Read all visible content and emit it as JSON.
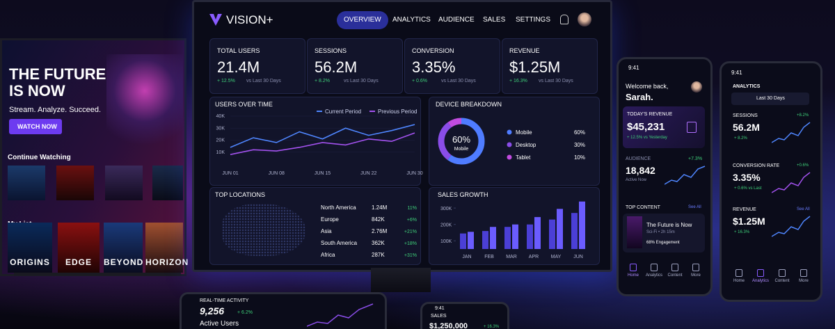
{
  "tv": {
    "headline": [
      "THE FUTURE",
      "IS NOW"
    ],
    "tagline": "Stream. Analyze. Succeed.",
    "cta": "WATCH NOW",
    "continue_watching": "Continue Watching",
    "my_list": "My List",
    "my_list_titles": [
      "ORIGINS",
      "EDGE",
      "BEYOND",
      "HORIZON"
    ]
  },
  "monitor": {
    "logo": "VISION+",
    "nav": [
      "OVERVIEW",
      "ANALYTICS",
      "AUDIENCE",
      "SALES",
      "SETTINGS"
    ],
    "kpis": [
      {
        "label": "TOTAL USERS",
        "value": "21.4M",
        "change": "+ 12.5%",
        "note": "vs Last 30 Days"
      },
      {
        "label": "SESSIONS",
        "value": "56.2M",
        "change": "+ 8.2%",
        "note": "vs Last 30 Days"
      },
      {
        "label": "CONVERSION",
        "value": "3.35%",
        "change": "+ 0.6%",
        "note": "vs Last 30 Days"
      },
      {
        "label": "REVENUE",
        "value": "$1.25M",
        "change": "+ 16.3%",
        "note": "vs Last 30 Days"
      }
    ],
    "users_over_time": {
      "type": "line",
      "title": "USERS OVER TIME",
      "categories": [
        "JUN 01",
        null,
        "JUN 08",
        null,
        "JUN 15",
        null,
        "JUN 22",
        null,
        "JUN 30"
      ],
      "series": [
        {
          "name": "Current Period",
          "color": "#4f86ff",
          "values": [
            14000,
            22000,
            18000,
            27000,
            21000,
            30000,
            24000,
            28000,
            33000
          ]
        },
        {
          "name": "Previous Period",
          "color": "#a452f0",
          "values": [
            8000,
            12000,
            11000,
            14000,
            18000,
            16000,
            21000,
            19000,
            26000
          ]
        }
      ],
      "ylim": [
        0,
        40000
      ],
      "yticks": [
        {
          "value": 10000,
          "label": "10K"
        },
        {
          "value": 20000,
          "label": "20K"
        },
        {
          "value": 30000,
          "label": "30K"
        },
        {
          "value": 40000,
          "label": "40K"
        }
      ]
    },
    "device_breakdown": {
      "type": "pie",
      "title": "DEVICE BREAKDOWN",
      "center_label": "Mobile",
      "categories": [
        "Mobile",
        "Desktop",
        "Tablet"
      ],
      "values": [
        60,
        30,
        10
      ],
      "value_labels": [
        "60%",
        "30%",
        "10%"
      ],
      "colors": [
        "#4f7cff",
        "#8a4de8",
        "#c24ce0"
      ]
    },
    "top_locations": {
      "title": "TOP LOCATIONS",
      "rows": [
        [
          "North America",
          "1.24M",
          "11%"
        ],
        [
          "Europe",
          "842K",
          "+6%"
        ],
        [
          "Asia",
          "2.76M",
          "+21%"
        ],
        [
          "South America",
          "362K",
          "+18%"
        ],
        [
          "Africa",
          "287K",
          "+31%"
        ]
      ]
    },
    "sales_growth": {
      "type": "bar",
      "title": "SALES GROWTH",
      "categories": [
        "JAN",
        "FEB",
        "MAR",
        "APR",
        "MAY",
        "JUN"
      ],
      "series": [
        {
          "color": "#4b3fd6",
          "values": [
            145000,
            160000,
            185000,
            200000,
            230000,
            270000
          ]
        },
        {
          "color": "#6b5cff",
          "values": [
            155000,
            185000,
            200000,
            245000,
            295000,
            340000
          ]
        }
      ],
      "ylim": [
        50000,
        360000
      ],
      "yticks": [
        {
          "value": 100000,
          "label": "100K"
        },
        {
          "value": 200000,
          "label": "200K"
        },
        {
          "value": 300000,
          "label": "300K"
        }
      ]
    }
  },
  "phone_home": {
    "time": "9:41",
    "greeting": "Welcome back,",
    "name": "Sarah.",
    "revenue_label": "TODAY'S REVENUE",
    "revenue": "$45,231",
    "revenue_note": "+ 12.5% vs Yesterday",
    "audience_label": "AUDIENCE",
    "audience_change": "+7.3%",
    "audience": "18,842",
    "audience_note": "Active Now",
    "top_content": "TOP CONTENT",
    "see_all": "See All",
    "content_title": "The Future is Now",
    "content_meta": "Sci-Fi • 2h 15m",
    "engagement": "68% Engagement",
    "nav": [
      "Home",
      "Analytics",
      "Content",
      "More"
    ]
  },
  "phone_analytics": {
    "time": "9:41",
    "title": "ANALYTICS",
    "range": "Last 30 Days",
    "metrics": [
      {
        "label": "SESSIONS",
        "badge": "+8.2%",
        "value": "56.2M",
        "note": "+ 8.2%"
      },
      {
        "label": "CONVERSION RATE",
        "badge": "+0.6%",
        "value": "3.35%",
        "note": "+ 0.6% vs Last"
      },
      {
        "label": "REVENUE",
        "badge": "See All",
        "value": "$1.25M",
        "note": "+ 16.3%"
      }
    ],
    "nav": [
      "Home",
      "Analytics",
      "Content",
      "More"
    ]
  },
  "tablet": {
    "title": "REAL-TIME ACTIVITY",
    "value": "9,256",
    "change": "+ 6.2%",
    "note": "Active Users"
  },
  "phone_sales": {
    "time": "9:41",
    "title": "SALES",
    "value": "$1,250,000",
    "change": "+ 16.3%"
  }
}
